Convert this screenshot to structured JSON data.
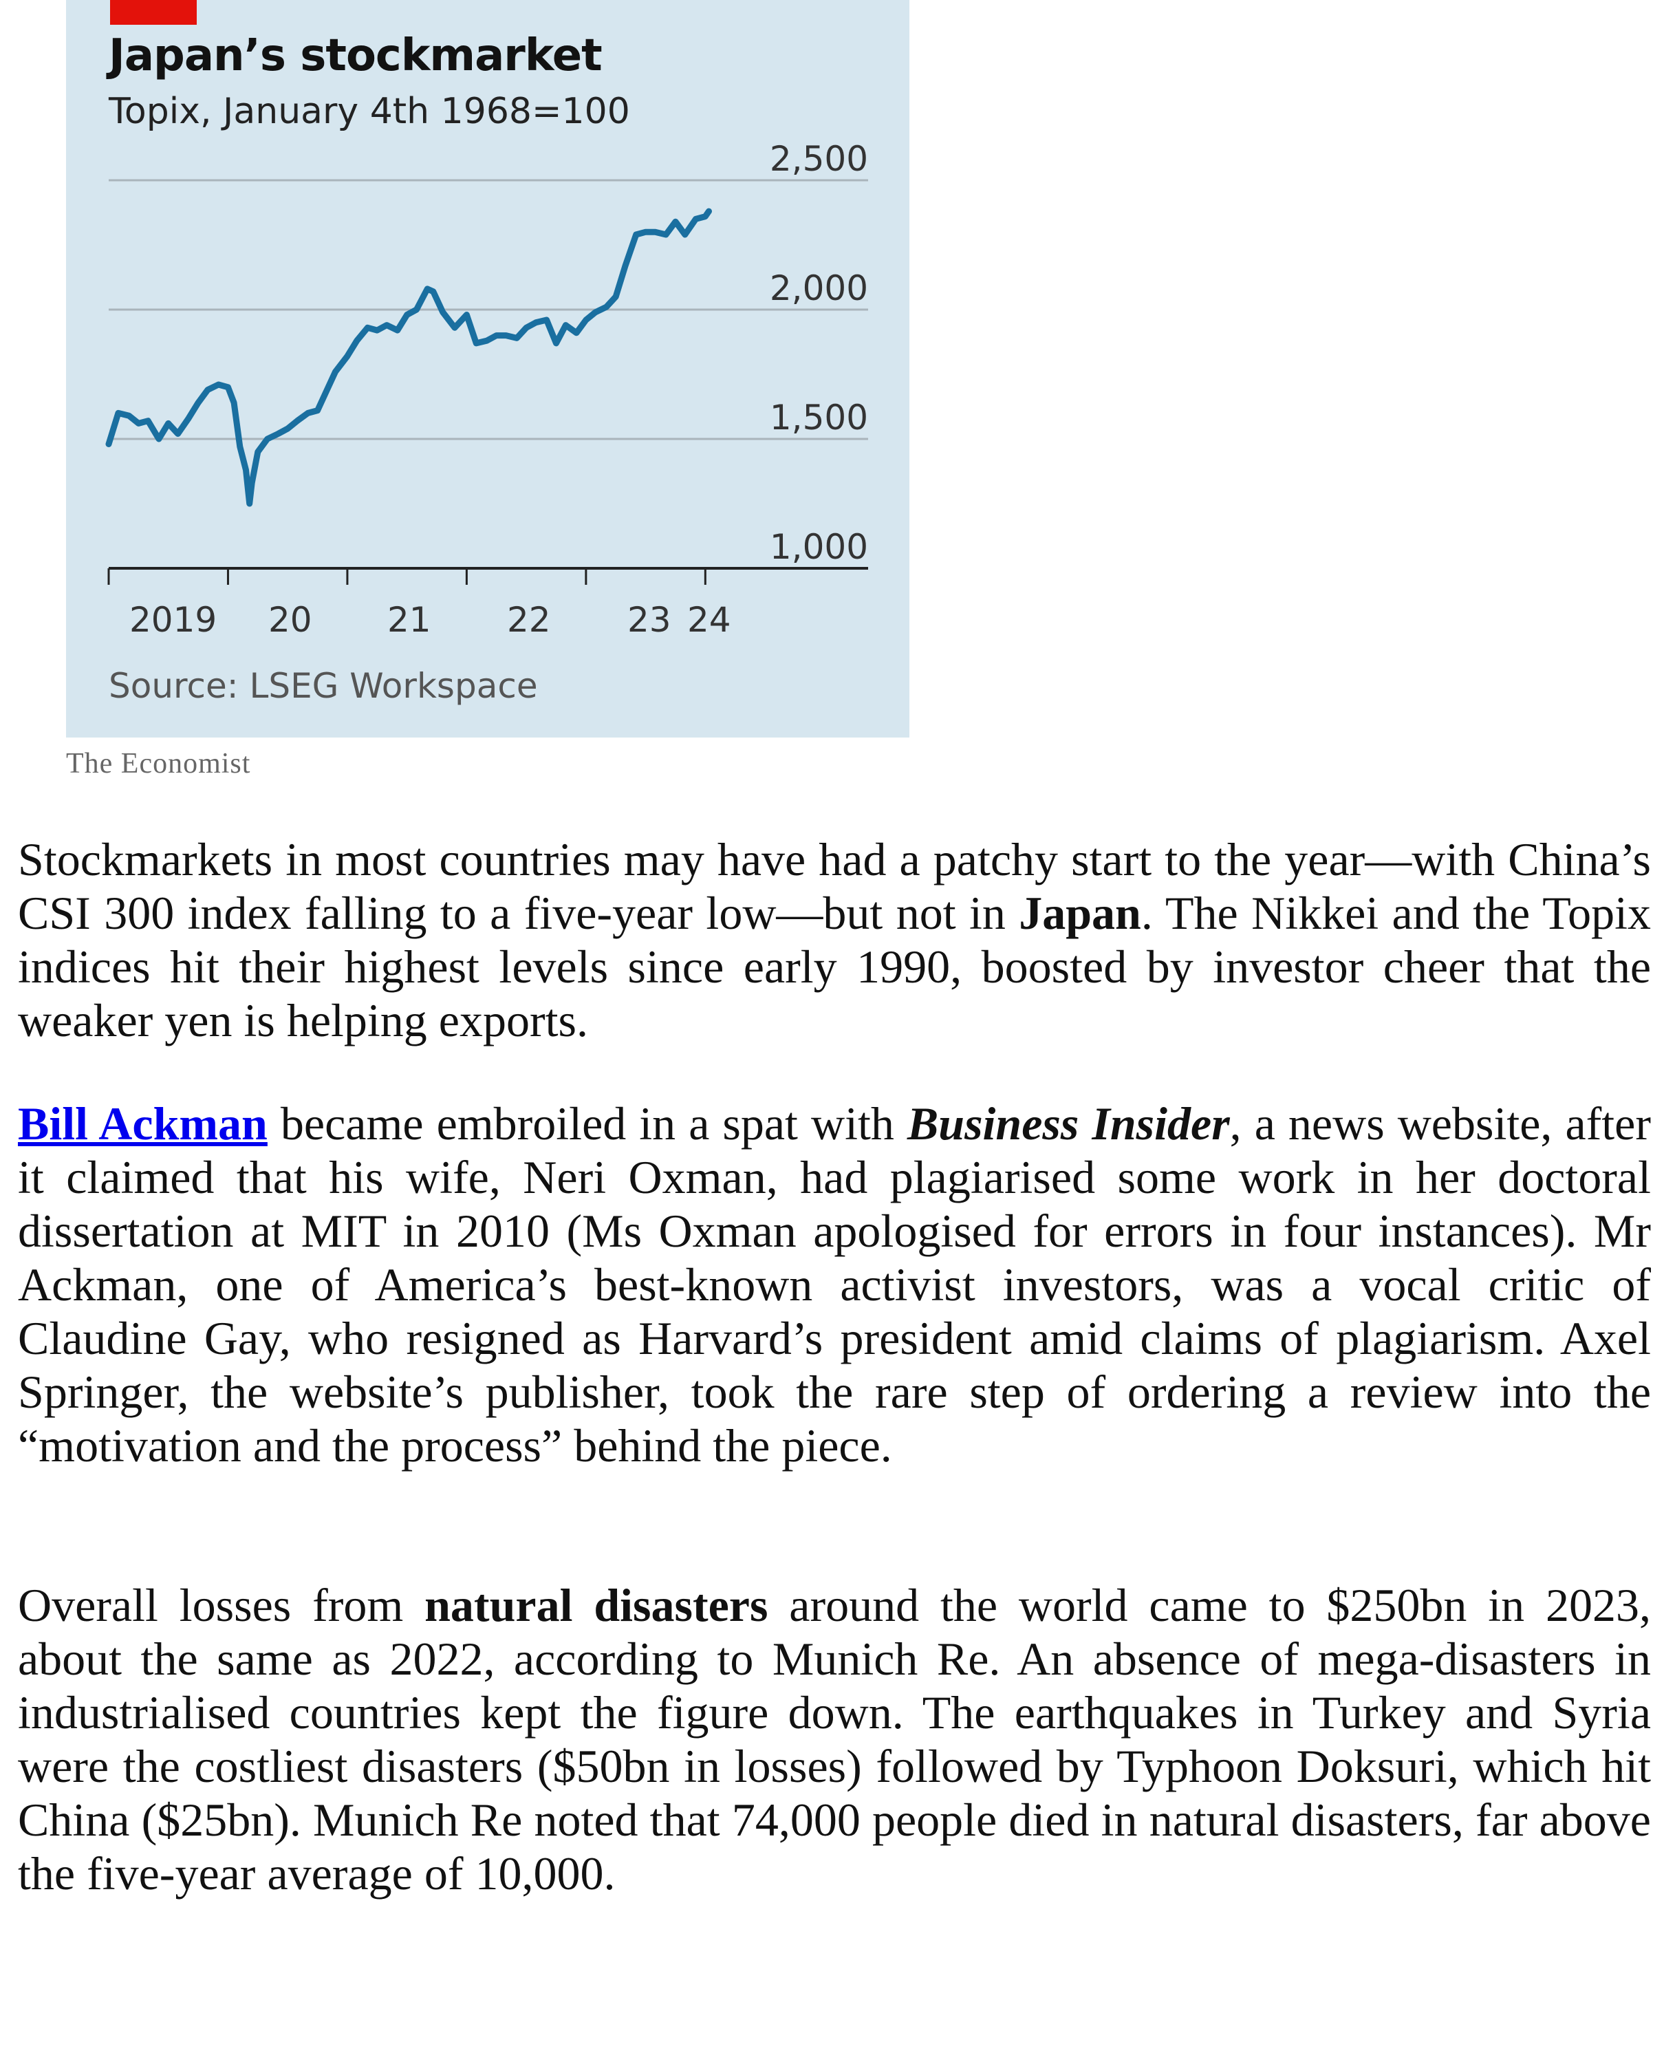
{
  "chart": {
    "title": "Japan’s stockmarket",
    "subtitle": "Topix, January 4th 1968=100",
    "source": "Source: LSEG Workspace",
    "brand": "The Economist",
    "colors": {
      "line": "#1a6fa0",
      "panel": "#d6e6ef",
      "tag": "#e3120b",
      "grid": "#a9b4bb"
    }
  },
  "chart_data": {
    "type": "line",
    "title": "Japan’s stockmarket",
    "subtitle": "Topix, January 4th 1968=100",
    "xlabel": "",
    "ylabel": "",
    "ylim": [
      1000,
      2500
    ],
    "xlim": [
      2019.0,
      2024.05
    ],
    "y_ticks": [
      "2,500",
      "2,000",
      "1,500",
      "1,000"
    ],
    "y_tick_values": [
      2500,
      2000,
      1500,
      1000
    ],
    "x_ticks": [
      "2019",
      "20",
      "21",
      "22",
      "23",
      "24"
    ],
    "x_tick_values": [
      2019,
      2020,
      2021,
      2022,
      2023,
      2024
    ],
    "axis_side": "right",
    "grid": true,
    "series": [
      {
        "x": [
          2019.0,
          2019.08,
          2019.17,
          2019.25,
          2019.33,
          2019.42,
          2019.5,
          2019.58,
          2019.67,
          2019.75,
          2019.83,
          2019.92,
          2020.0,
          2020.05,
          2020.1,
          2020.15,
          2020.18,
          2020.2,
          2020.25,
          2020.33,
          2020.42,
          2020.5,
          2020.58,
          2020.67,
          2020.75,
          2020.83,
          2020.9,
          2021.0,
          2021.08,
          2021.17,
          2021.25,
          2021.33,
          2021.42,
          2021.5,
          2021.58,
          2021.67,
          2021.72,
          2021.8,
          2021.9,
          2022.0,
          2022.08,
          2022.17,
          2022.25,
          2022.33,
          2022.42,
          2022.5,
          2022.58,
          2022.67,
          2022.75,
          2022.83,
          2022.92,
          2023.0,
          2023.08,
          2023.17,
          2023.25,
          2023.33,
          2023.42,
          2023.5,
          2023.58,
          2023.67,
          2023.75,
          2023.83,
          2023.92,
          2024.0,
          2024.03
        ],
        "values": [
          1480,
          1600,
          1590,
          1560,
          1570,
          1500,
          1560,
          1520,
          1580,
          1640,
          1690,
          1710,
          1700,
          1640,
          1470,
          1380,
          1250,
          1330,
          1450,
          1500,
          1520,
          1540,
          1570,
          1600,
          1610,
          1690,
          1760,
          1820,
          1880,
          1930,
          1920,
          1940,
          1920,
          1980,
          2000,
          2080,
          2070,
          1990,
          1930,
          1980,
          1870,
          1880,
          1900,
          1900,
          1890,
          1930,
          1950,
          1960,
          1870,
          1940,
          1910,
          1960,
          1990,
          2010,
          2050,
          2170,
          2290,
          2300,
          2300,
          2290,
          2340,
          2290,
          2350,
          2360,
          2380
        ]
      }
    ]
  },
  "article": {
    "p1": [
      {
        "text": "Stockmarkets in most countries may have had a patchy start to the year—with China’s CSI 300 index falling to a five-year low—but not in ",
        "style": "normal"
      },
      {
        "text": "Japan",
        "style": "bold"
      },
      {
        "text": ". The Nikkei and the Topix indices hit their highest levels since early 1990, boosted by investor cheer that the weaker yen is helping exports.",
        "style": "normal"
      }
    ],
    "p2": [
      {
        "text": "Bill Ackman",
        "style": "link"
      },
      {
        "text": " became embroiled in a spat with ",
        "style": "normal"
      },
      {
        "text": "Business Insider",
        "style": "bolditalic"
      },
      {
        "text": ", a news website, after it claimed that his wife, Neri Oxman, had plagiarised some work in her doctoral dissertation at MIT in 2010 (Ms Oxman apologised for errors in four instances). Mr Ackman, one of America’s best-known activist investors, was a vocal critic of Claudine Gay, who resigned as Harvard’s president amid claims of plagiarism. Axel Springer, the website’s publisher, took the rare step of ordering a review into the “motivation and the process” behind the piece.",
        "style": "normal"
      }
    ],
    "p3": [
      {
        "text": "Overall losses from ",
        "style": "normal"
      },
      {
        "text": "natural disasters",
        "style": "bold"
      },
      {
        "text": " around the world came to $250bn in 2023, about the same as 2022, according to Munich Re. An absence of mega-disasters in industrialised countries kept the figure down. The earthquakes in Turkey and Syria were the costliest disasters ($50bn in losses) followed by Typhoon Doksuri, which hit China ($25bn). Munich Re noted that 74,000 people died in natural disasters, far above the five-year average of 10,000.",
        "style": "normal"
      }
    ]
  }
}
